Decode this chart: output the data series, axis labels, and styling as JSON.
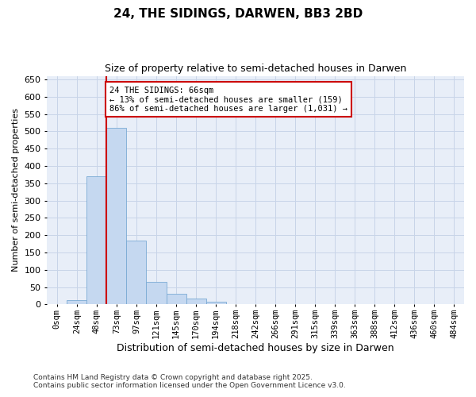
{
  "title": "24, THE SIDINGS, DARWEN, BB3 2BD",
  "subtitle": "Size of property relative to semi-detached houses in Darwen",
  "xlabel": "Distribution of semi-detached houses by size in Darwen",
  "ylabel": "Number of semi-detached properties",
  "bin_labels": [
    "0sqm",
    "24sqm",
    "48sqm",
    "73sqm",
    "97sqm",
    "121sqm",
    "145sqm",
    "170sqm",
    "194sqm",
    "218sqm",
    "242sqm",
    "266sqm",
    "291sqm",
    "315sqm",
    "339sqm",
    "363sqm",
    "388sqm",
    "412sqm",
    "436sqm",
    "460sqm",
    "484sqm"
  ],
  "bin_values": [
    2,
    12,
    370,
    510,
    185,
    65,
    30,
    17,
    7,
    2,
    0,
    0,
    0,
    2,
    0,
    0,
    2,
    0,
    0,
    0,
    0
  ],
  "bar_color": "#c5d8f0",
  "bar_edge_color": "#7aaad4",
  "grid_color": "#c8d4e8",
  "background_color": "#e8eef8",
  "red_line_color": "#cc0000",
  "red_line_bin_index": 3,
  "annotation_title": "24 THE SIDINGS: 66sqm",
  "annotation_line1": "← 13% of semi-detached houses are smaller (159)",
  "annotation_line2": "86% of semi-detached houses are larger (1,031) →",
  "annotation_box_facecolor": "#ffffff",
  "annotation_box_edgecolor": "#cc0000",
  "ylim": [
    0,
    660
  ],
  "yticks": [
    0,
    50,
    100,
    150,
    200,
    250,
    300,
    350,
    400,
    450,
    500,
    550,
    600,
    650
  ],
  "footnote1": "Contains HM Land Registry data © Crown copyright and database right 2025.",
  "footnote2": "Contains public sector information licensed under the Open Government Licence v3.0."
}
